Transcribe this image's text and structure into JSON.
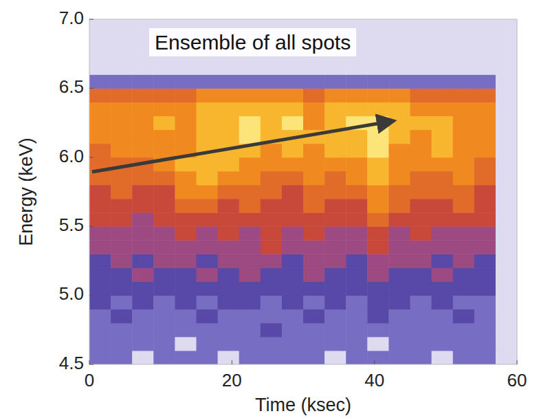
{
  "chart_data": {
    "type": "heatmap",
    "title": "Ensemble of all spots",
    "x_label": "Time (ksec)",
    "y_label": "Energy (keV)",
    "xlim": [
      0,
      60
    ],
    "ylim": [
      4.5,
      7.0
    ],
    "xticks": [
      0,
      20,
      40,
      60
    ],
    "yticks": [
      4.5,
      {
        "value": 5,
        "label": "5.0"
      },
      5.5,
      {
        "value": 6,
        "label": "6.0"
      },
      6.5,
      {
        "value": 7,
        "label": "7.0"
      }
    ],
    "x_bins": [
      0,
      3,
      6,
      9,
      12,
      15,
      18,
      21,
      24,
      27,
      30,
      33,
      36,
      39,
      42,
      45,
      48,
      51,
      54,
      57,
      60
    ],
    "y_bins": [
      4.5,
      4.6,
      4.7,
      4.8,
      4.9,
      5.0,
      5.1,
      5.2,
      5.3,
      5.4,
      5.5,
      5.6,
      5.7,
      5.8,
      5.9,
      6.0,
      6.1,
      6.2,
      6.3,
      6.4,
      6.5,
      6.6,
      6.7,
      6.8,
      6.9,
      7.0
    ],
    "cells": [
      [
        2,
        2,
        1,
        2,
        2,
        2,
        1,
        2,
        2,
        2,
        2,
        1,
        2,
        2,
        2,
        2,
        1,
        2,
        2,
        1
      ],
      [
        2,
        2,
        2,
        2,
        1,
        2,
        2,
        2,
        2,
        2,
        2,
        2,
        2,
        1,
        2,
        2,
        2,
        2,
        2,
        1
      ],
      [
        2,
        2,
        2,
        2,
        2,
        2,
        2,
        2,
        3,
        2,
        2,
        2,
        2,
        2,
        2,
        2,
        2,
        2,
        2,
        1
      ],
      [
        2,
        3,
        2,
        2,
        2,
        3,
        2,
        2,
        2,
        2,
        3,
        2,
        2,
        3,
        2,
        2,
        2,
        3,
        2,
        1
      ],
      [
        3,
        2,
        3,
        2,
        3,
        2,
        3,
        3,
        2,
        3,
        2,
        3,
        2,
        3,
        3,
        2,
        3,
        2,
        2,
        1
      ],
      [
        3,
        3,
        3,
        3,
        3,
        3,
        3,
        3,
        3,
        3,
        3,
        3,
        3,
        3,
        3,
        3,
        3,
        3,
        3,
        1
      ],
      [
        3,
        3,
        4,
        3,
        3,
        4,
        3,
        4,
        3,
        3,
        4,
        3,
        3,
        4,
        3,
        3,
        4,
        3,
        3,
        1
      ],
      [
        3,
        4,
        3,
        4,
        4,
        3,
        4,
        4,
        4,
        3,
        4,
        4,
        3,
        4,
        4,
        4,
        3,
        4,
        3,
        1
      ],
      [
        4,
        4,
        4,
        4,
        4,
        4,
        4,
        4,
        5,
        4,
        4,
        4,
        4,
        5,
        4,
        4,
        4,
        4,
        4,
        1
      ],
      [
        4,
        4,
        4,
        4,
        5,
        4,
        5,
        4,
        5,
        4,
        5,
        4,
        4,
        5,
        4,
        5,
        4,
        4,
        4,
        1
      ],
      [
        5,
        5,
        4,
        5,
        5,
        5,
        5,
        5,
        5,
        5,
        5,
        5,
        5,
        6,
        5,
        5,
        5,
        5,
        5,
        1
      ],
      [
        5,
        5,
        5,
        5,
        6,
        6,
        5,
        6,
        5,
        5,
        6,
        5,
        5,
        7,
        6,
        5,
        5,
        6,
        5,
        1
      ],
      [
        5,
        6,
        5,
        5,
        7,
        7,
        6,
        6,
        6,
        5,
        6,
        6,
        6,
        7,
        6,
        6,
        6,
        6,
        5,
        1
      ],
      [
        6,
        6,
        6,
        6,
        7,
        8,
        7,
        7,
        6,
        6,
        7,
        6,
        7,
        8,
        7,
        6,
        6,
        7,
        6,
        1
      ],
      [
        6,
        6,
        6,
        7,
        8,
        8,
        8,
        7,
        7,
        7,
        7,
        7,
        7,
        8,
        7,
        7,
        7,
        7,
        6,
        1
      ],
      [
        6,
        7,
        7,
        7,
        7,
        8,
        8,
        8,
        7,
        8,
        7,
        8,
        8,
        9,
        7,
        7,
        8,
        7,
        7,
        1
      ],
      [
        7,
        7,
        7,
        7,
        7,
        8,
        8,
        9,
        8,
        8,
        8,
        8,
        8,
        9,
        8,
        7,
        8,
        7,
        7,
        1
      ],
      [
        7,
        7,
        7,
        8,
        7,
        8,
        8,
        9,
        8,
        9,
        7,
        8,
        9,
        9,
        8,
        8,
        8,
        7,
        7,
        1
      ],
      [
        7,
        7,
        7,
        7,
        7,
        8,
        8,
        8,
        8,
        8,
        7,
        8,
        8,
        8,
        8,
        7,
        7,
        7,
        7,
        1
      ],
      [
        6,
        6,
        6,
        6,
        6,
        7,
        7,
        7,
        7,
        7,
        6,
        7,
        7,
        7,
        7,
        6,
        6,
        6,
        6,
        1
      ],
      [
        2,
        2,
        2,
        2,
        2,
        2,
        2,
        2,
        2,
        2,
        2,
        2,
        2,
        2,
        2,
        2,
        2,
        2,
        2,
        1
      ],
      [
        1,
        1,
        1,
        1,
        1,
        1,
        1,
        1,
        1,
        1,
        1,
        1,
        1,
        1,
        1,
        1,
        1,
        1,
        1,
        1
      ],
      [
        1,
        1,
        1,
        1,
        1,
        1,
        1,
        1,
        1,
        1,
        1,
        1,
        1,
        1,
        1,
        1,
        1,
        1,
        1,
        1
      ],
      [
        1,
        1,
        1,
        1,
        1,
        1,
        1,
        1,
        1,
        1,
        1,
        1,
        1,
        1,
        1,
        1,
        1,
        1,
        1,
        1
      ],
      [
        1,
        1,
        1,
        1,
        1,
        1,
        1,
        1,
        1,
        1,
        1,
        1,
        1,
        1,
        1,
        1,
        1,
        1,
        1,
        1
      ]
    ]
  }
}
